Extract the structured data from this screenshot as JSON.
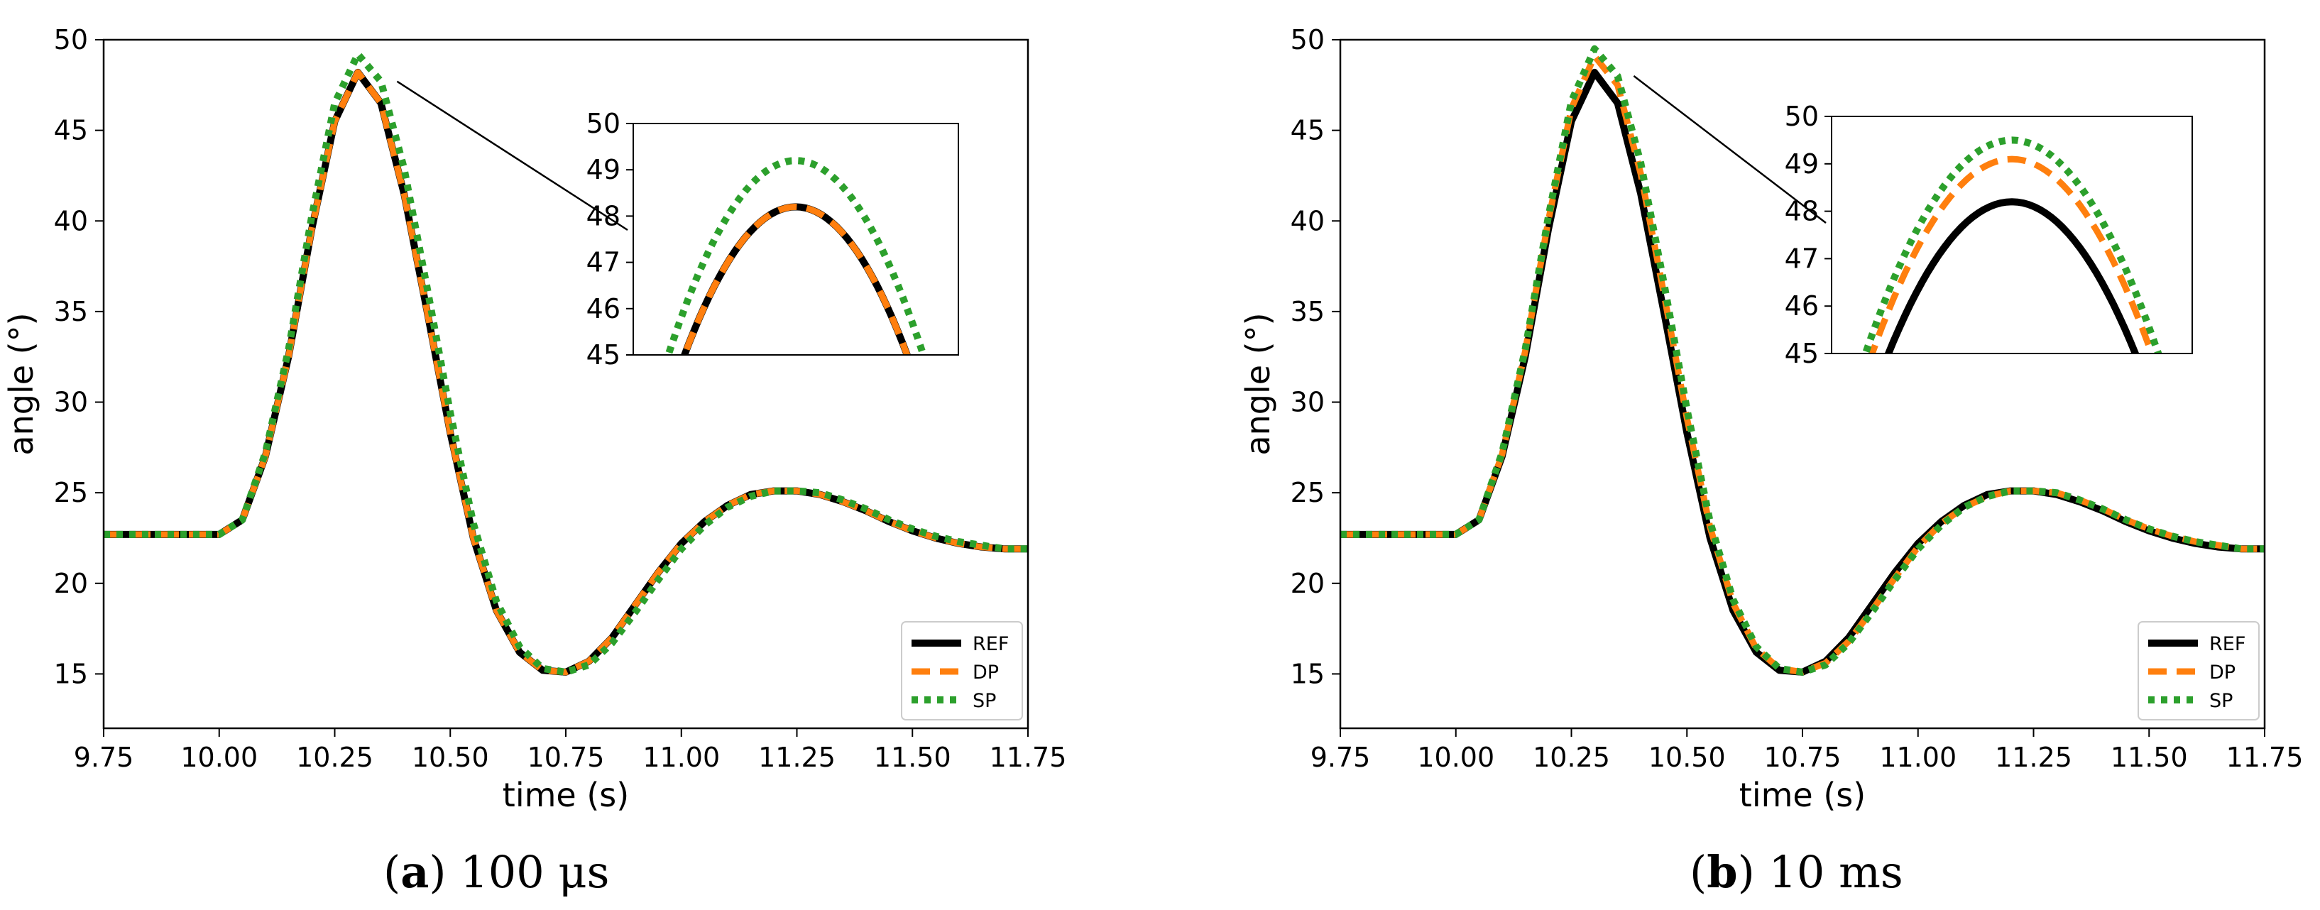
{
  "chart_data": [
    {
      "type": "line",
      "caption": {
        "letter": "a",
        "text": "100 μs"
      },
      "xlabel": "time (s)",
      "ylabel": "angle (°)",
      "xlim": [
        9.75,
        11.75
      ],
      "ylim": [
        12,
        50
      ],
      "xticks": [
        "9.75",
        "10.00",
        "10.25",
        "10.50",
        "10.75",
        "11.00",
        "11.25",
        "11.50",
        "11.75"
      ],
      "yticks": [
        "15",
        "20",
        "25",
        "30",
        "35",
        "40",
        "45",
        "50"
      ],
      "legend": {
        "placement": "lower-right",
        "entries": [
          "REF",
          "DP",
          "SP"
        ]
      },
      "series": [
        {
          "name": "REF",
          "color": "#000000",
          "style": "solid",
          "x": [
            9.75,
            10.0,
            10.05,
            10.1,
            10.15,
            10.2,
            10.25,
            10.3,
            10.35,
            10.4,
            10.45,
            10.5,
            10.55,
            10.6,
            10.65,
            10.7,
            10.75,
            10.8,
            10.85,
            10.9,
            10.95,
            11.0,
            11.05,
            11.1,
            11.15,
            11.2,
            11.25,
            11.3,
            11.35,
            11.4,
            11.45,
            11.5,
            11.55,
            11.6,
            11.65,
            11.7,
            11.75
          ],
          "y": [
            22.7,
            22.7,
            23.5,
            27.0,
            32.5,
            39.5,
            45.5,
            48.2,
            46.5,
            41.5,
            35.0,
            28.3,
            22.5,
            18.5,
            16.2,
            15.2,
            15.1,
            15.7,
            17.0,
            18.8,
            20.6,
            22.2,
            23.4,
            24.3,
            24.9,
            25.1,
            25.1,
            24.9,
            24.5,
            24.0,
            23.4,
            22.9,
            22.5,
            22.2,
            22.0,
            21.9,
            21.9
          ]
        },
        {
          "name": "DP",
          "color": "#ff7f0e",
          "style": "dashed",
          "x": [
            9.75,
            10.0,
            10.05,
            10.1,
            10.15,
            10.2,
            10.25,
            10.3,
            10.35,
            10.4,
            10.45,
            10.5,
            10.55,
            10.6,
            10.65,
            10.7,
            10.75,
            10.8,
            10.85,
            10.9,
            10.95,
            11.0,
            11.05,
            11.1,
            11.15,
            11.2,
            11.25,
            11.3,
            11.35,
            11.4,
            11.45,
            11.5,
            11.55,
            11.6,
            11.65,
            11.7,
            11.75
          ],
          "y": [
            22.7,
            22.7,
            23.5,
            27.0,
            32.5,
            39.5,
            45.5,
            48.2,
            46.5,
            41.5,
            35.0,
            28.3,
            22.5,
            18.5,
            16.2,
            15.2,
            15.1,
            15.7,
            17.0,
            18.8,
            20.6,
            22.2,
            23.4,
            24.3,
            24.9,
            25.1,
            25.1,
            24.9,
            24.5,
            24.0,
            23.4,
            22.9,
            22.5,
            22.2,
            22.0,
            21.9,
            21.9
          ]
        },
        {
          "name": "SP",
          "color": "#2ca02c",
          "style": "dotted",
          "x": [
            9.75,
            10.0,
            10.05,
            10.1,
            10.15,
            10.2,
            10.25,
            10.3,
            10.35,
            10.4,
            10.45,
            10.5,
            10.55,
            10.6,
            10.65,
            10.7,
            10.75,
            10.8,
            10.85,
            10.9,
            10.95,
            11.0,
            11.05,
            11.1,
            11.15,
            11.2,
            11.25,
            11.3,
            11.35,
            11.4,
            11.45,
            11.5,
            11.55,
            11.6,
            11.65,
            11.7,
            11.75
          ],
          "y": [
            22.7,
            22.7,
            23.5,
            27.2,
            32.9,
            40.2,
            46.5,
            49.2,
            47.7,
            42.9,
            36.3,
            29.4,
            23.3,
            19.0,
            16.5,
            15.3,
            15.1,
            15.5,
            16.7,
            18.4,
            20.2,
            21.9,
            23.2,
            24.2,
            24.8,
            25.1,
            25.1,
            25.0,
            24.6,
            24.1,
            23.5,
            23.0,
            22.6,
            22.3,
            22.1,
            21.9,
            21.9
          ]
        }
      ],
      "inset": {
        "xlim": [
          10.22,
          10.38
        ],
        "ylim": [
          45,
          50
        ],
        "yticks": [
          "45",
          "46",
          "47",
          "48",
          "49",
          "50"
        ],
        "peaks": [
          {
            "name": "REF",
            "x": 10.3,
            "y": 48.2
          },
          {
            "name": "DP",
            "x": 10.3,
            "y": 48.2
          },
          {
            "name": "SP",
            "x": 10.3,
            "y": 49.2
          }
        ]
      }
    },
    {
      "type": "line",
      "caption": {
        "letter": "b",
        "text": "10 ms"
      },
      "xlabel": "time (s)",
      "ylabel": "angle (°)",
      "xlim": [
        9.75,
        11.75
      ],
      "ylim": [
        12,
        50
      ],
      "xticks": [
        "9.75",
        "10.00",
        "10.25",
        "10.50",
        "10.75",
        "11.00",
        "11.25",
        "11.50",
        "11.75"
      ],
      "yticks": [
        "15",
        "20",
        "25",
        "30",
        "35",
        "40",
        "45",
        "50"
      ],
      "legend": {
        "placement": "lower-right",
        "entries": [
          "REF",
          "DP",
          "SP"
        ]
      },
      "series": [
        {
          "name": "REF",
          "color": "#000000",
          "style": "solid",
          "x": [
            9.75,
            10.0,
            10.05,
            10.1,
            10.15,
            10.2,
            10.25,
            10.3,
            10.35,
            10.4,
            10.45,
            10.5,
            10.55,
            10.6,
            10.65,
            10.7,
            10.75,
            10.8,
            10.85,
            10.9,
            10.95,
            11.0,
            11.05,
            11.1,
            11.15,
            11.2,
            11.25,
            11.3,
            11.35,
            11.4,
            11.45,
            11.5,
            11.55,
            11.6,
            11.65,
            11.7,
            11.75
          ],
          "y": [
            22.7,
            22.7,
            23.5,
            27.0,
            32.5,
            39.5,
            45.5,
            48.2,
            46.5,
            41.5,
            35.0,
            28.3,
            22.5,
            18.5,
            16.2,
            15.2,
            15.1,
            15.7,
            17.0,
            18.8,
            20.6,
            22.2,
            23.4,
            24.3,
            24.9,
            25.1,
            25.1,
            24.9,
            24.5,
            24.0,
            23.4,
            22.9,
            22.5,
            22.2,
            22.0,
            21.9,
            21.9
          ]
        },
        {
          "name": "DP",
          "color": "#ff7f0e",
          "style": "dashed",
          "x": [
            9.75,
            10.0,
            10.05,
            10.1,
            10.15,
            10.2,
            10.25,
            10.3,
            10.35,
            10.4,
            10.45,
            10.5,
            10.55,
            10.6,
            10.65,
            10.7,
            10.75,
            10.8,
            10.85,
            10.9,
            10.95,
            11.0,
            11.05,
            11.1,
            11.15,
            11.2,
            11.25,
            11.3,
            11.35,
            11.4,
            11.45,
            11.5,
            11.55,
            11.6,
            11.65,
            11.7,
            11.75
          ],
          "y": [
            22.7,
            22.7,
            23.5,
            27.1,
            32.8,
            40.0,
            46.2,
            49.1,
            47.5,
            42.6,
            36.0,
            29.1,
            23.1,
            18.9,
            16.4,
            15.3,
            15.1,
            15.6,
            16.8,
            18.5,
            20.3,
            22.0,
            23.3,
            24.2,
            24.8,
            25.1,
            25.1,
            25.0,
            24.6,
            24.1,
            23.5,
            23.0,
            22.6,
            22.3,
            22.1,
            21.9,
            21.9
          ]
        },
        {
          "name": "SP",
          "color": "#2ca02c",
          "style": "dotted",
          "x": [
            9.75,
            10.0,
            10.05,
            10.1,
            10.15,
            10.2,
            10.25,
            10.3,
            10.35,
            10.4,
            10.45,
            10.5,
            10.55,
            10.6,
            10.65,
            10.7,
            10.75,
            10.8,
            10.85,
            10.9,
            10.95,
            11.0,
            11.05,
            11.1,
            11.15,
            11.2,
            11.25,
            11.3,
            11.35,
            11.4,
            11.45,
            11.5,
            11.55,
            11.6,
            11.65,
            11.7,
            11.75
          ],
          "y": [
            22.7,
            22.7,
            23.5,
            27.2,
            32.9,
            40.2,
            46.6,
            49.5,
            48.0,
            43.2,
            36.6,
            29.6,
            23.4,
            19.1,
            16.5,
            15.3,
            15.1,
            15.5,
            16.7,
            18.4,
            20.2,
            21.9,
            23.2,
            24.2,
            24.8,
            25.1,
            25.1,
            25.0,
            24.6,
            24.1,
            23.5,
            23.0,
            22.6,
            22.3,
            22.1,
            21.9,
            21.9
          ]
        }
      ],
      "inset": {
        "xlim": [
          10.22,
          10.38
        ],
        "ylim": [
          45,
          50
        ],
        "yticks": [
          "45",
          "46",
          "47",
          "48",
          "49",
          "50"
        ],
        "peaks": [
          {
            "name": "REF",
            "x": 10.3,
            "y": 48.2
          },
          {
            "name": "DP",
            "x": 10.3,
            "y": 49.1
          },
          {
            "name": "SP",
            "x": 10.3,
            "y": 49.5
          }
        ]
      }
    }
  ]
}
